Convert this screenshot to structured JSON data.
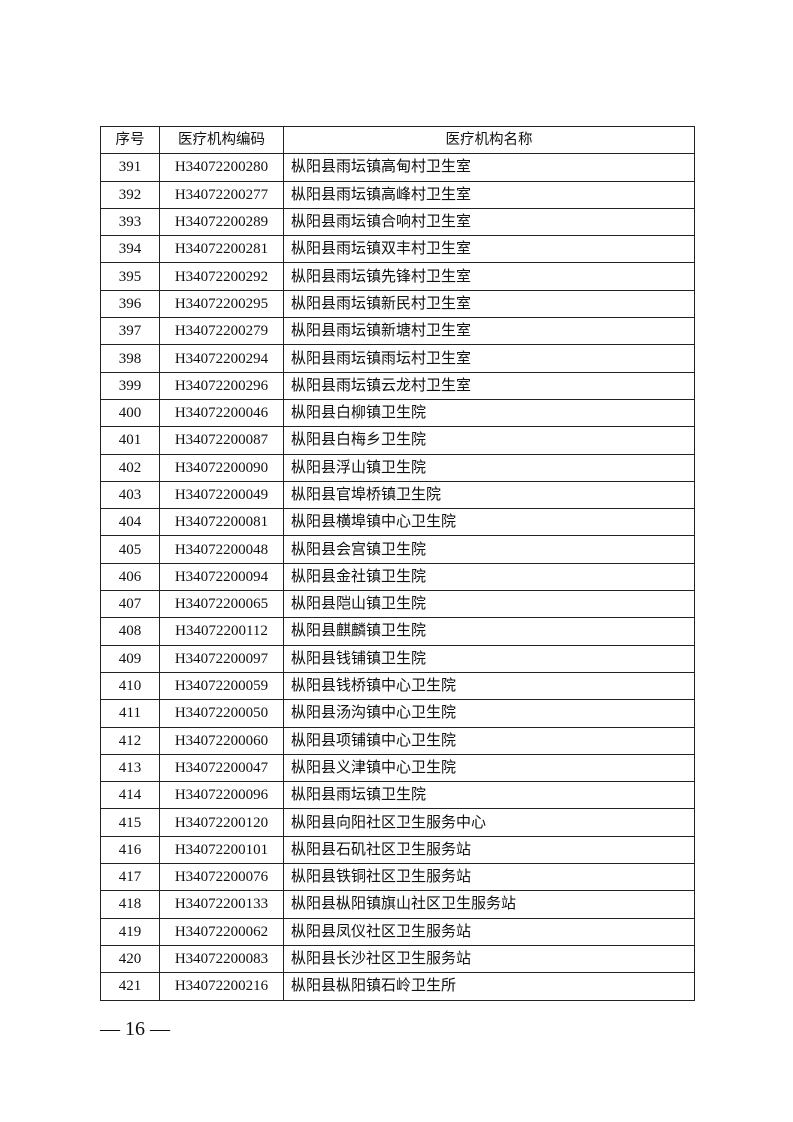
{
  "table": {
    "headers": [
      "序号",
      "医疗机构编码",
      "医疗机构名称"
    ],
    "rows": [
      [
        "391",
        "H34072200280",
        "枞阳县雨坛镇高甸村卫生室"
      ],
      [
        "392",
        "H34072200277",
        "枞阳县雨坛镇高峰村卫生室"
      ],
      [
        "393",
        "H34072200289",
        "枞阳县雨坛镇合响村卫生室"
      ],
      [
        "394",
        "H34072200281",
        "枞阳县雨坛镇双丰村卫生室"
      ],
      [
        "395",
        "H34072200292",
        "枞阳县雨坛镇先锋村卫生室"
      ],
      [
        "396",
        "H34072200295",
        "枞阳县雨坛镇新民村卫生室"
      ],
      [
        "397",
        "H34072200279",
        "枞阳县雨坛镇新塘村卫生室"
      ],
      [
        "398",
        "H34072200294",
        "枞阳县雨坛镇雨坛村卫生室"
      ],
      [
        "399",
        "H34072200296",
        "枞阳县雨坛镇云龙村卫生室"
      ],
      [
        "400",
        "H34072200046",
        "枞阳县白柳镇卫生院"
      ],
      [
        "401",
        "H34072200087",
        "枞阳县白梅乡卫生院"
      ],
      [
        "402",
        "H34072200090",
        "枞阳县浮山镇卫生院"
      ],
      [
        "403",
        "H34072200049",
        "枞阳县官埠桥镇卫生院"
      ],
      [
        "404",
        "H34072200081",
        "枞阳县横埠镇中心卫生院"
      ],
      [
        "405",
        "H34072200048",
        "枞阳县会宫镇卫生院"
      ],
      [
        "406",
        "H34072200094",
        "枞阳县金社镇卫生院"
      ],
      [
        "407",
        "H34072200065",
        "枞阳县𬮿山镇卫生院"
      ],
      [
        "408",
        "H34072200112",
        "枞阳县麒麟镇卫生院"
      ],
      [
        "409",
        "H34072200097",
        "枞阳县钱铺镇卫生院"
      ],
      [
        "410",
        "H34072200059",
        "枞阳县钱桥镇中心卫生院"
      ],
      [
        "411",
        "H34072200050",
        "枞阳县汤沟镇中心卫生院"
      ],
      [
        "412",
        "H34072200060",
        "枞阳县项铺镇中心卫生院"
      ],
      [
        "413",
        "H34072200047",
        "枞阳县义津镇中心卫生院"
      ],
      [
        "414",
        "H34072200096",
        "枞阳县雨坛镇卫生院"
      ],
      [
        "415",
        "H34072200120",
        "枞阳县向阳社区卫生服务中心"
      ],
      [
        "416",
        "H34072200101",
        "枞阳县石矶社区卫生服务站"
      ],
      [
        "417",
        "H34072200076",
        "枞阳县铁铜社区卫生服务站"
      ],
      [
        "418",
        "H34072200133",
        "枞阳县枞阳镇旗山社区卫生服务站"
      ],
      [
        "419",
        "H34072200062",
        "枞阳县凤仪社区卫生服务站"
      ],
      [
        "420",
        "H34072200083",
        "枞阳县长沙社区卫生服务站"
      ],
      [
        "421",
        "H34072200216",
        "枞阳县枞阳镇石岭卫生所"
      ]
    ]
  },
  "page_number": "— 16 —"
}
